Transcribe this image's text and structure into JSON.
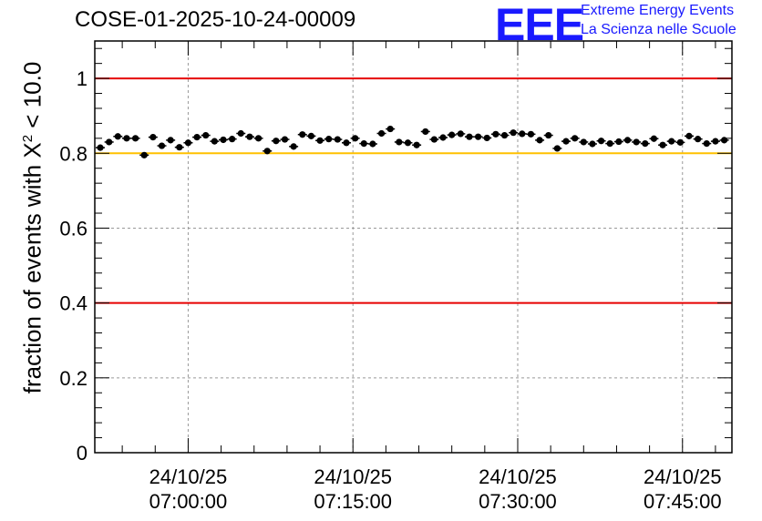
{
  "chart_data": {
    "type": "scatter",
    "title": "COSE-01-2025-10-24-00009",
    "logo": {
      "mark": "EEE",
      "line1": "Extreme Energy Events",
      "line2": "La Scienza nelle Scuole"
    },
    "ylabel": {
      "prefix": "fraction of events with X",
      "superscript": "2",
      "suffix": " < 10.0"
    },
    "xlabel": "",
    "ylim": [
      0,
      1.1
    ],
    "xlim_minutes": [
      -8.5,
      49.5
    ],
    "yticks": [
      {
        "value": 0,
        "label": "0"
      },
      {
        "value": 0.2,
        "label": "0.2"
      },
      {
        "value": 0.4,
        "label": "0.4"
      },
      {
        "value": 0.6,
        "label": "0.6"
      },
      {
        "value": 0.8,
        "label": "0.8"
      },
      {
        "value": 1,
        "label": "1"
      }
    ],
    "xticks": [
      {
        "minutes": 0,
        "date": "24/10/25",
        "time": "07:00:00"
      },
      {
        "minutes": 15,
        "date": "24/10/25",
        "time": "07:15:00"
      },
      {
        "minutes": 30,
        "date": "24/10/25",
        "time": "07:30:00"
      },
      {
        "minutes": 45,
        "date": "24/10/25",
        "time": "07:45:00"
      }
    ],
    "grid": true,
    "reference_lines": [
      {
        "y": 1.0,
        "color": "#e60000"
      },
      {
        "y": 0.8,
        "color": "#ffc000"
      },
      {
        "y": 0.4,
        "color": "#e60000"
      }
    ],
    "marker_color": "#000000",
    "x_minutes": [
      -8.0,
      -7.2,
      -6.4,
      -5.6,
      -4.8,
      -4.0,
      -3.2,
      -2.4,
      -1.6,
      -0.8,
      0.0,
      0.8,
      1.6,
      2.4,
      3.2,
      4.0,
      4.8,
      5.6,
      6.4,
      7.2,
      8.0,
      8.8,
      9.6,
      10.4,
      11.2,
      12.0,
      12.8,
      13.6,
      14.4,
      15.2,
      16.0,
      16.8,
      17.6,
      18.4,
      19.2,
      20.0,
      20.8,
      21.6,
      22.4,
      23.2,
      24.0,
      24.8,
      25.6,
      26.4,
      27.2,
      28.0,
      28.8,
      29.6,
      30.4,
      31.2,
      32.0,
      32.8,
      33.6,
      34.4,
      35.2,
      36.0,
      36.8,
      37.6,
      38.4,
      39.2,
      40.0,
      40.8,
      41.6,
      42.4,
      43.2,
      44.0,
      44.8,
      45.6,
      46.4,
      47.2,
      48.0,
      48.8
    ],
    "y": [
      0.815,
      0.83,
      0.845,
      0.84,
      0.84,
      0.795,
      0.843,
      0.82,
      0.835,
      0.816,
      0.828,
      0.843,
      0.848,
      0.832,
      0.836,
      0.838,
      0.853,
      0.844,
      0.84,
      0.806,
      0.833,
      0.837,
      0.818,
      0.85,
      0.846,
      0.834,
      0.838,
      0.837,
      0.828,
      0.84,
      0.826,
      0.825,
      0.853,
      0.865,
      0.83,
      0.828,
      0.822,
      0.858,
      0.837,
      0.842,
      0.849,
      0.852,
      0.844,
      0.844,
      0.841,
      0.851,
      0.848,
      0.855,
      0.852,
      0.851,
      0.835,
      0.848,
      0.813,
      0.832,
      0.84,
      0.83,
      0.825,
      0.833,
      0.826,
      0.831,
      0.835,
      0.83,
      0.826,
      0.839,
      0.822,
      0.832,
      0.829,
      0.846,
      0.838,
      0.826,
      0.832,
      0.835
    ],
    "y_err": 0.008
  }
}
